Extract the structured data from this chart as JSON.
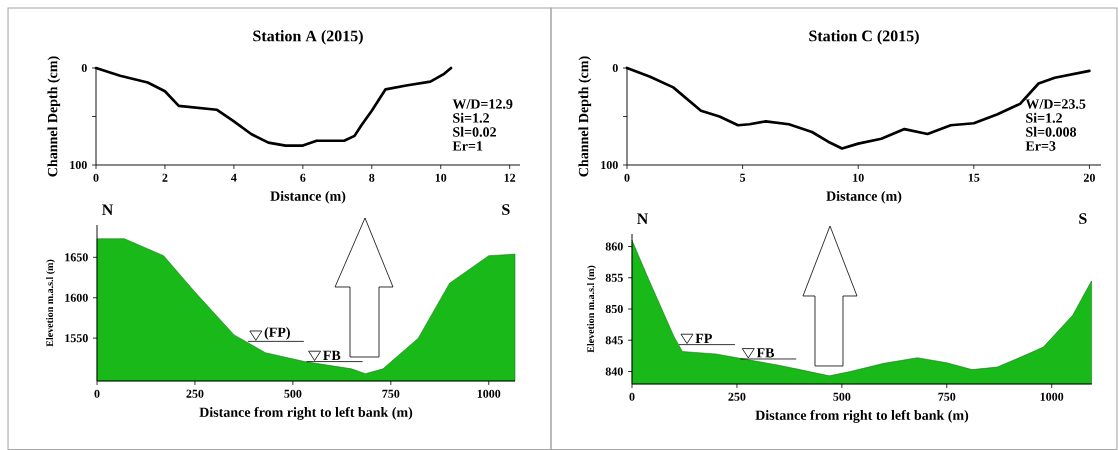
{
  "chart_data": [
    {
      "type": "line",
      "title": "Station A (2015)",
      "xlabel": "Distance (m)",
      "ylabel": "Channel Depth (cm)",
      "color": "#000000",
      "x": [
        0,
        0.7,
        1.5,
        2,
        2.4,
        3.5,
        4,
        4.5,
        5,
        5.5,
        6,
        6.4,
        7.2,
        7.5,
        7.7,
        8,
        8.4,
        9,
        9.7,
        10.1,
        10.3
      ],
      "values": [
        0,
        8,
        15,
        24,
        39,
        43,
        55,
        68,
        77,
        80,
        80,
        75,
        75,
        70,
        59,
        44,
        22,
        18,
        14,
        6,
        0
      ],
      "xlim": [
        0,
        12.3
      ],
      "xticks": [
        0,
        2,
        4,
        6,
        8,
        10,
        12
      ],
      "ylim": [
        100,
        0
      ],
      "yticks": [
        0,
        {
          "value": 50,
          "label": null
        },
        100
      ],
      "annotations": [
        "W/D=12.9",
        "Si=1.2",
        "Sl=0.02",
        "Er=1"
      ]
    },
    {
      "type": "area",
      "xlabel": "Distance from right to left bank (m)",
      "ylabel": "Elevetion m.a.s.l (m)",
      "color": "#19b919",
      "x": [
        0,
        70,
        170,
        250,
        350,
        430,
        530,
        650,
        685,
        730,
        820,
        900,
        1000,
        1067
      ],
      "values": [
        1673,
        1673,
        1652,
        1607,
        1554,
        1532,
        1521,
        1512,
        1506,
        1512,
        1550,
        1618,
        1652,
        1654
      ],
      "xlim": [
        0,
        1067
      ],
      "xticks": [
        0,
        250,
        500,
        750,
        1000
      ],
      "ylim": [
        1497,
        1690
      ],
      "yticks": [
        1550,
        1600,
        1650
      ],
      "annotations": [
        "N",
        "S",
        {
          "text": "(FP)",
          "x": 385,
          "y": 1546
        },
        {
          "text": "FB",
          "x": 535,
          "y": 1521
        }
      ]
    },
    {
      "type": "line",
      "title": "Station C (2015)",
      "xlabel": "Distance (m)",
      "ylabel": "Channel Depth (cm)",
      "color": "#000000",
      "x": [
        0,
        1,
        2,
        3.2,
        4,
        4.8,
        5.3,
        6,
        7,
        8,
        8.7,
        9.3,
        10,
        11,
        12,
        13,
        14,
        15,
        16,
        17,
        17.8,
        18.5,
        20
      ],
      "values": [
        0,
        9,
        20,
        44,
        50,
        59,
        58,
        55,
        58,
        66,
        76,
        83,
        78,
        73,
        63,
        68,
        59,
        57,
        48,
        37,
        16,
        10,
        3
      ],
      "xlim": [
        0,
        20.5
      ],
      "xticks": [
        0,
        5,
        10,
        15,
        20
      ],
      "ylim": [
        100,
        0
      ],
      "yticks": [
        0,
        {
          "value": 50,
          "label": null
        },
        100
      ],
      "annotations": [
        "W/D=23.5",
        "Si=1.2",
        "Sl=0.008",
        "Er=3"
      ]
    },
    {
      "type": "area",
      "xlabel": "Distance from right to left bank (m)",
      "ylabel": "Elevetion m.a.s.l (m)",
      "color": "#19b919",
      "x": [
        0,
        40,
        100,
        120,
        200,
        250,
        350,
        400,
        470,
        520,
        600,
        680,
        750,
        810,
        870,
        940,
        980,
        1050,
        1095
      ],
      "values": [
        861,
        854.7,
        845.6,
        843.2,
        842.8,
        842.2,
        841,
        840.3,
        839.3,
        840,
        841.3,
        842.2,
        841.4,
        840.3,
        840.7,
        842.7,
        843.9,
        849,
        854.5
      ],
      "xlim": [
        0,
        1096
      ],
      "xticks": [
        0,
        250,
        500,
        750,
        1000
      ],
      "ylim": [
        838,
        862
      ],
      "yticks": [
        840,
        845,
        850,
        855,
        860
      ],
      "annotations": [
        "N",
        "S",
        {
          "text": "FP",
          "x": 112,
          "y": 844.3
        },
        {
          "text": "FB",
          "x": 258,
          "y": 842
        }
      ]
    }
  ]
}
